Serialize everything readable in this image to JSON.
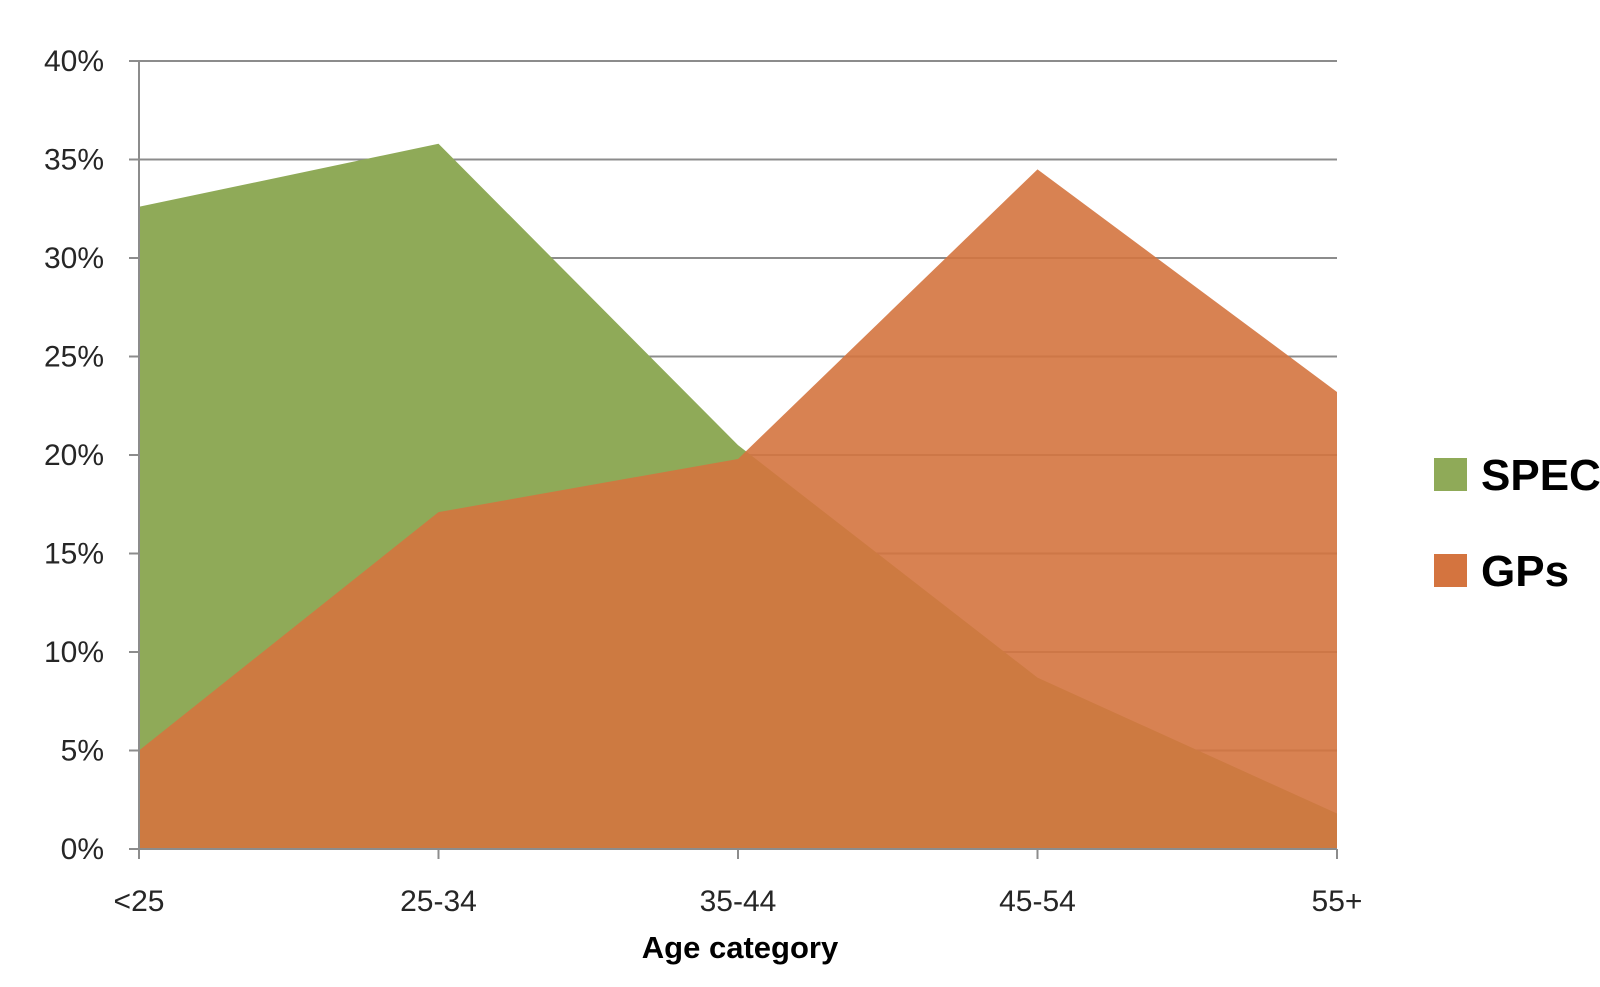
{
  "chart_data": {
    "type": "area",
    "categories": [
      "<25",
      "25-34",
      "35-44",
      "45-54",
      "55+"
    ],
    "series": [
      {
        "name": "SPEC",
        "values": [
          32.6,
          35.8,
          20.5,
          8.7,
          1.8
        ],
        "color": "#8faa58"
      },
      {
        "name": "GPs",
        "values": [
          5.0,
          17.1,
          19.8,
          34.5,
          23.2
        ],
        "color": "#d4743f"
      }
    ],
    "y_ticks": [
      "0%",
      "5%",
      "10%",
      "15%",
      "20%",
      "25%",
      "30%",
      "35%",
      "40%"
    ],
    "ylim": [
      0,
      40
    ],
    "xlabel": "Age category",
    "ylabel": "",
    "grid": "horizontal",
    "legend_position": "right"
  }
}
